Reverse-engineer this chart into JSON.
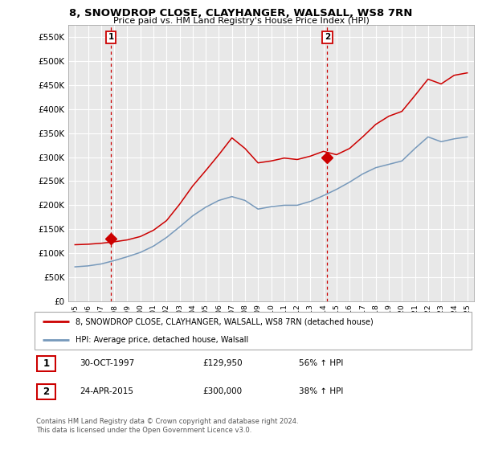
{
  "title": "8, SNOWDROP CLOSE, CLAYHANGER, WALSALL, WS8 7RN",
  "subtitle": "Price paid vs. HM Land Registry's House Price Index (HPI)",
  "background_color": "#ffffff",
  "plot_bg_color": "#e8e8e8",
  "grid_color": "#ffffff",
  "red_line_color": "#cc0000",
  "blue_line_color": "#7799bb",
  "marker_color": "#cc0000",
  "ylim": [
    0,
    575000
  ],
  "yticks": [
    0,
    50000,
    100000,
    150000,
    200000,
    250000,
    300000,
    350000,
    400000,
    450000,
    500000,
    550000
  ],
  "ytick_labels": [
    "£0",
    "£50K",
    "£100K",
    "£150K",
    "£200K",
    "£250K",
    "£300K",
    "£350K",
    "£400K",
    "£450K",
    "£500K",
    "£550K"
  ],
  "sale1_x": 2.75,
  "sale1_value": 129950,
  "sale2_x": 19.3,
  "sale2_value": 300000,
  "legend_line1": "8, SNOWDROP CLOSE, CLAYHANGER, WALSALL, WS8 7RN (detached house)",
  "legend_line2": "HPI: Average price, detached house, Walsall",
  "table_row1": [
    "1",
    "30-OCT-1997",
    "£129,950",
    "56% ↑ HPI"
  ],
  "table_row2": [
    "2",
    "24-APR-2015",
    "£300,000",
    "38% ↑ HPI"
  ],
  "footnote": "Contains HM Land Registry data © Crown copyright and database right 2024.\nThis data is licensed under the Open Government Licence v3.0.",
  "x_years": [
    1995,
    1996,
    1997,
    1998,
    1999,
    2000,
    2001,
    2002,
    2003,
    2004,
    2005,
    2006,
    2007,
    2008,
    2009,
    2010,
    2011,
    2012,
    2013,
    2014,
    2015,
    2016,
    2017,
    2018,
    2019,
    2020,
    2021,
    2022,
    2023,
    2024,
    2025
  ],
  "hpi_values": [
    72000,
    74000,
    78000,
    85000,
    93000,
    102000,
    115000,
    133000,
    155000,
    178000,
    196000,
    210000,
    218000,
    210000,
    192000,
    197000,
    200000,
    200000,
    208000,
    220000,
    233000,
    248000,
    265000,
    278000,
    285000,
    292000,
    318000,
    342000,
    332000,
    338000,
    342000
  ],
  "property_values": [
    118000,
    119000,
    121000,
    124000,
    128000,
    135000,
    148000,
    168000,
    202000,
    240000,
    272000,
    305000,
    340000,
    318000,
    288000,
    292000,
    298000,
    295000,
    302000,
    312000,
    305000,
    318000,
    342000,
    368000,
    385000,
    395000,
    428000,
    462000,
    452000,
    470000,
    475000
  ]
}
